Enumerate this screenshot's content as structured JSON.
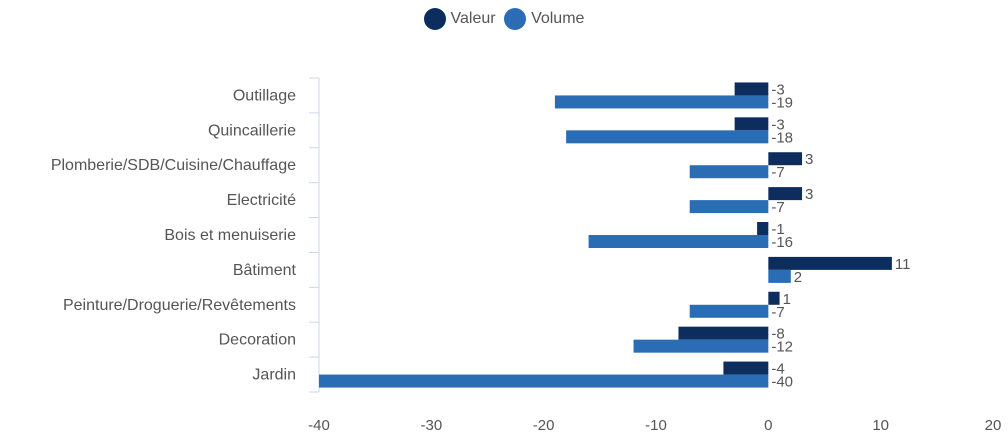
{
  "chart_data": {
    "type": "bar",
    "orientation": "horizontal",
    "categories": [
      "Outillage",
      "Quincaillerie",
      "Plomberie/SDB/Cuisine/Chauffage",
      "Electricité",
      "Bois et menuiserie",
      "Bâtiment",
      "Peinture/Droguerie/Revêtements",
      "Decoration",
      "Jardin"
    ],
    "series": [
      {
        "name": "Valeur",
        "color": "#0d2d5e",
        "values": [
          -3,
          -3,
          3,
          3,
          -1,
          11,
          1,
          -8,
          -4
        ]
      },
      {
        "name": "Volume",
        "color": "#2a6db5",
        "values": [
          -19,
          -18,
          -7,
          -7,
          -16,
          2,
          -7,
          -12,
          -40
        ]
      }
    ],
    "xlim": [
      -40,
      20
    ],
    "xticks": [
      -40,
      -30,
      -20,
      -10,
      0,
      10,
      20
    ],
    "legend_position": "top-center",
    "grid": false
  }
}
